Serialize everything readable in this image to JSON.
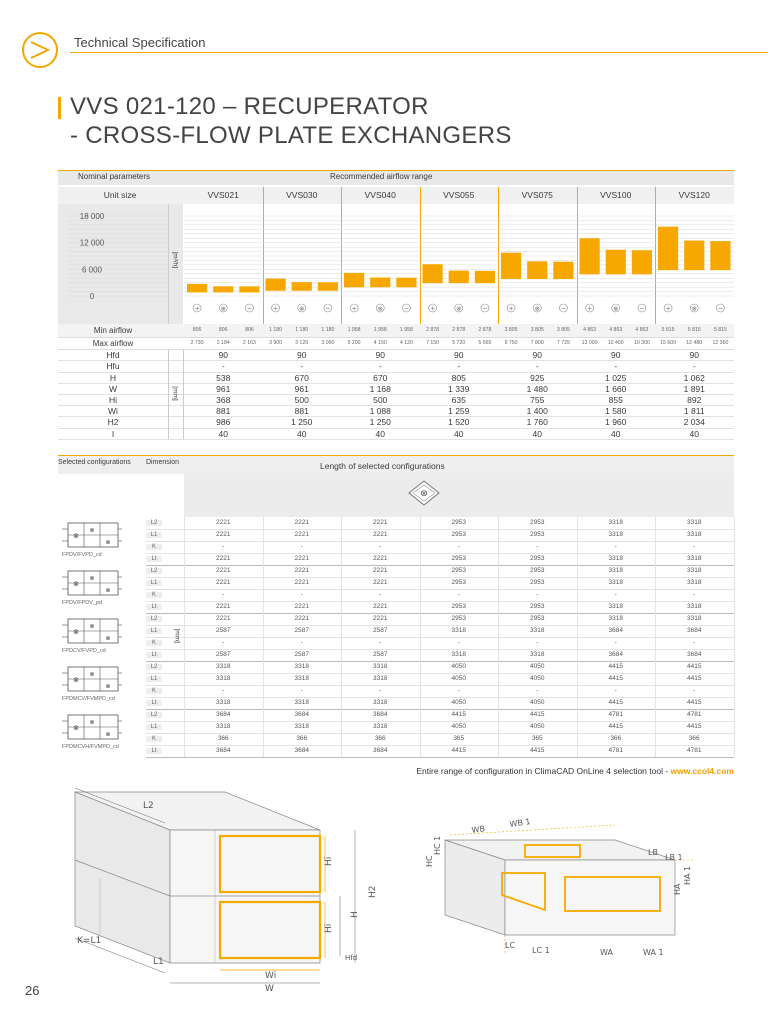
{
  "header": {
    "section": "Technical Specification",
    "page_number": "26"
  },
  "title": {
    "line1": "VVS 021-120 – RECUPERATOR",
    "line2": "- CROSS-FLOW PLATE EXCHANGERS"
  },
  "table1": {
    "head_left": "Nominal parameters",
    "head_right": "Recommended airflow range",
    "unit_size_label": "Unit size",
    "units": [
      "VVS021",
      "VVS030",
      "VVS040",
      "VVS055",
      "VVS075",
      "VVS100",
      "VVS120"
    ],
    "y_ticks": [
      "18 000",
      "12 000",
      "6 000",
      "0"
    ],
    "y_unit": "[m³/h]",
    "icons": [
      "+",
      "⊗",
      "−"
    ],
    "chart_data": {
      "type": "bar",
      "title": "",
      "ylabel": "[m³/h]",
      "ylim": [
        0,
        18000
      ],
      "categories": [
        "VVS021",
        "VVS030",
        "VVS040",
        "VVS055",
        "VVS075",
        "VVS100",
        "VVS120"
      ],
      "series": [
        {
          "name": "",
          "min": [
            806,
            1180,
            1958,
            2878,
            3805,
            4863,
            5815
          ],
          "max": [
            2730,
            3900,
            5200,
            7150,
            9750,
            13000,
            15600
          ]
        },
        {
          "name": "",
          "min": [
            806,
            1180,
            1958,
            2878,
            3805,
            4863,
            5815
          ],
          "max": [
            2184,
            3120,
            4160,
            5720,
            7800,
            10400,
            12480
          ]
        },
        {
          "name": "",
          "min": [
            806,
            1180,
            1958,
            2878,
            3805,
            4863,
            5815
          ],
          "max": [
            2163,
            3090,
            4120,
            5665,
            7725,
            10300,
            12360
          ]
        }
      ]
    },
    "rows_minmax": [
      {
        "label": "Min airflow",
        "values": [
          "806",
          "806",
          "806",
          "1 180",
          "1 180",
          "1 180",
          "1 958",
          "1 958",
          "1 958",
          "2 878",
          "2 878",
          "2 878",
          "3 805",
          "3 805",
          "3 805",
          "4 863",
          "4 863",
          "4 863",
          "5 815",
          "5 815",
          "5 815"
        ]
      },
      {
        "label": "Max airflow",
        "values": [
          "2 730",
          "2 184",
          "2 163",
          "3 900",
          "3 120",
          "3 090",
          "5 200",
          "4 160",
          "4 120",
          "7 150",
          "5 720",
          "5 665",
          "9 750",
          "7 800",
          "7 725",
          "13 000",
          "10 400",
          "10 300",
          "15 600",
          "12 480",
          "12 360"
        ]
      }
    ],
    "dim_unit": "[mm]",
    "rows_dims": [
      {
        "label": "Hfd",
        "values": [
          "90",
          "90",
          "90",
          "90",
          "90",
          "90",
          "90"
        ]
      },
      {
        "label": "Hfu",
        "values": [
          "-",
          "-",
          "-",
          "-",
          "-",
          "-",
          "-"
        ]
      },
      {
        "label": "H",
        "values": [
          "538",
          "670",
          "670",
          "805",
          "925",
          "1 025",
          "1 062"
        ]
      },
      {
        "label": "W",
        "values": [
          "961",
          "961",
          "1 168",
          "1 339",
          "1 480",
          "1 660",
          "1 891"
        ]
      },
      {
        "label": "Hi",
        "values": [
          "368",
          "500",
          "500",
          "635",
          "755",
          "855",
          "892"
        ]
      },
      {
        "label": "Wi",
        "values": [
          "881",
          "881",
          "1 088",
          "1 259",
          "1 400",
          "1 580",
          "1 811"
        ]
      },
      {
        "label": "H2",
        "values": [
          "986",
          "1 250",
          "1 250",
          "1 520",
          "1 760",
          "1 960",
          "2 034"
        ]
      },
      {
        "label": "I",
        "values": [
          "40",
          "40",
          "40",
          "40",
          "40",
          "40",
          "40"
        ]
      }
    ]
  },
  "table2": {
    "head_left1": "Selected configurations",
    "head_left2": "Dimension",
    "head_right": "Length of selected configurations",
    "dim_unit": "[mm]",
    "configs": [
      {
        "name": "FPDV/FVPD_cd",
        "rows": [
          {
            "label": "L2",
            "values": [
              "2221",
              "2221",
              "2221",
              "2953",
              "2953",
              "3318",
              "3318"
            ]
          },
          {
            "label": "L1",
            "values": [
              "2221",
              "2221",
              "2221",
              "2953",
              "2953",
              "3318",
              "3318"
            ]
          },
          {
            "label": "K",
            "values": [
              "-",
              "-",
              "-",
              "-",
              "-",
              "-",
              "-"
            ]
          },
          {
            "label": "Lt",
            "values": [
              "2221",
              "2221",
              "2221",
              "2953",
              "2953",
              "3318",
              "3318"
            ]
          }
        ]
      },
      {
        "name": "FPDV/FPDV_pd",
        "rows": [
          {
            "label": "L2",
            "values": [
              "2221",
              "2221",
              "2221",
              "2953",
              "2953",
              "3318",
              "3318"
            ]
          },
          {
            "label": "L1",
            "values": [
              "2221",
              "2221",
              "2221",
              "2953",
              "2953",
              "3318",
              "3318"
            ]
          },
          {
            "label": "K",
            "values": [
              "-",
              "-",
              "-",
              "-",
              "-",
              "-",
              "-"
            ]
          },
          {
            "label": "Lt",
            "values": [
              "2221",
              "2221",
              "2221",
              "2953",
              "2953",
              "3318",
              "3318"
            ]
          }
        ]
      },
      {
        "name": "FPDCV/FVPD_cd",
        "rows": [
          {
            "label": "L2",
            "values": [
              "2221",
              "2221",
              "2221",
              "2953",
              "2953",
              "3318",
              "3318"
            ]
          },
          {
            "label": "L1",
            "values": [
              "2587",
              "2587",
              "2587",
              "3318",
              "3318",
              "3684",
              "3684"
            ]
          },
          {
            "label": "K",
            "values": [
              "-",
              "-",
              "-",
              "-",
              "-",
              "-",
              "-"
            ]
          },
          {
            "label": "Lt",
            "values": [
              "2587",
              "2587",
              "2587",
              "3318",
              "3318",
              "3684",
              "3684"
            ]
          }
        ]
      },
      {
        "name": "FPDMCV/FVMPD_cd",
        "rows": [
          {
            "label": "L2",
            "values": [
              "3318",
              "3318",
              "3318",
              "4050",
              "4050",
              "4415",
              "4415"
            ]
          },
          {
            "label": "L1",
            "values": [
              "3318",
              "3318",
              "3318",
              "4050",
              "4050",
              "4415",
              "4415"
            ]
          },
          {
            "label": "K",
            "values": [
              "-",
              "-",
              "-",
              "-",
              "-",
              "-",
              "-"
            ]
          },
          {
            "label": "Lt",
            "values": [
              "3318",
              "3318",
              "3318",
              "4050",
              "4050",
              "4415",
              "4415"
            ]
          }
        ]
      },
      {
        "name": "FPDMCVH/FVMPD_cd",
        "rows": [
          {
            "label": "L2",
            "values": [
              "3684",
              "3684",
              "3684",
              "4415",
              "4415",
              "4781",
              "4781"
            ]
          },
          {
            "label": "L1",
            "values": [
              "3318",
              "3318",
              "3318",
              "4050",
              "4050",
              "4415",
              "4415"
            ]
          },
          {
            "label": "K",
            "values": [
              "366",
              "366",
              "366",
              "365",
              "365",
              "366",
              "366"
            ]
          },
          {
            "label": "Lt",
            "values": [
              "3684",
              "3684",
              "3684",
              "4415",
              "4415",
              "4781",
              "4781"
            ]
          }
        ]
      }
    ]
  },
  "footnote": {
    "text": "Entire range of configuration in ClimaCAD OnLine 4 selection tool - ",
    "url": "www.ccol4.com"
  },
  "diagram_left": {
    "labels": [
      "L2",
      "Hi",
      "H2",
      "H",
      "Hi",
      "Hfd",
      "K=L1",
      "L1",
      "Wi",
      "W"
    ]
  },
  "diagram_right": {
    "labels": [
      "WB",
      "WB 1",
      "HC",
      "HC 1",
      "LB",
      "LB 1",
      "HA",
      "HA 1",
      "LC",
      "LC 1",
      "WA",
      "WA 1"
    ]
  },
  "colors": {
    "accent": "#f6a800",
    "grid": "#d8d8d8",
    "header_bg": "#e8e8e8"
  }
}
